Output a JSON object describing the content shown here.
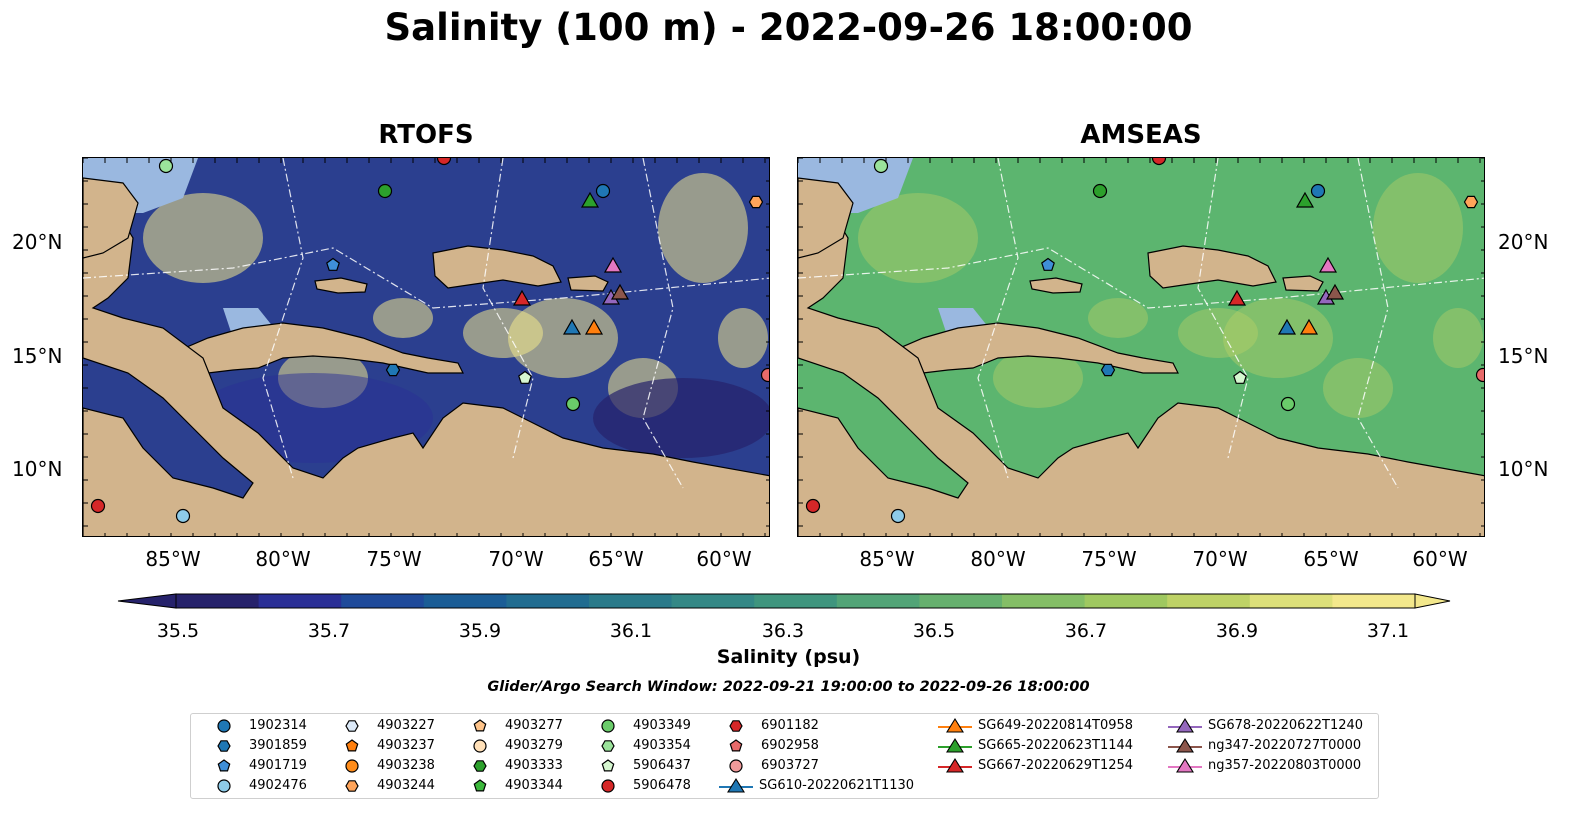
{
  "figure": {
    "title": "Salinity (100 m) - 2022-09-26 18:00:00",
    "panels": [
      {
        "title": "RTOFS",
        "ocean_color": "#2b3f8f"
      },
      {
        "title": "AMSEAS",
        "ocean_color": "#5cb56f"
      }
    ],
    "lat_labels": [
      "20°N",
      "15°N",
      "10°N"
    ],
    "lon_labels": [
      "85°W",
      "80°W",
      "75°W",
      "70°W",
      "65°W",
      "60°W"
    ],
    "colorbar": {
      "label": "Salinity (psu)",
      "ticks": [
        "35.5",
        "35.7",
        "35.9",
        "36.1",
        "36.3",
        "36.5",
        "36.7",
        "36.9",
        "37.1"
      ],
      "colors": [
        "#26226b",
        "#2a2f96",
        "#1f4a9a",
        "#1b5d96",
        "#216c90",
        "#2a7a8a",
        "#348886",
        "#3f957e",
        "#52a477",
        "#66b06e",
        "#84be66",
        "#9fc860",
        "#bed266",
        "#dde07a",
        "#f3e88c"
      ]
    },
    "search_window": "Glider/Argo Search Window: 2022-09-21 19:00:00 to 2022-09-26 18:00:00",
    "colors": {
      "land": "#d2b48c",
      "shelf": "#9ab8e0"
    }
  },
  "legend": [
    {
      "label": "1902314",
      "marker": "circle",
      "color": "#1f77b4"
    },
    {
      "label": "3901859",
      "marker": "hexagon",
      "color": "#1f77b4"
    },
    {
      "label": "4901719",
      "marker": "pentagon",
      "color": "#3f8fd8"
    },
    {
      "label": "4902476",
      "marker": "circle",
      "color": "#8ecbe8"
    },
    {
      "label": "4903227",
      "marker": "hexagon",
      "color": "#dbe9f8"
    },
    {
      "label": "4903237",
      "marker": "pentagon",
      "color": "#ff7f0e"
    },
    {
      "label": "4903238",
      "marker": "circle",
      "color": "#ff8c1a"
    },
    {
      "label": "4903244",
      "marker": "hexagon",
      "color": "#ffa45a"
    },
    {
      "label": "4903277",
      "marker": "pentagon",
      "color": "#ffc48a"
    },
    {
      "label": "4903279",
      "marker": "circle",
      "color": "#ffe0b8"
    },
    {
      "label": "4903333",
      "marker": "hexagon",
      "color": "#2ca02c"
    },
    {
      "label": "4903344",
      "marker": "pentagon",
      "color": "#3cb83c"
    },
    {
      "label": "4903349",
      "marker": "circle",
      "color": "#6acc6a"
    },
    {
      "label": "4903354",
      "marker": "hexagon",
      "color": "#9be39b"
    },
    {
      "label": "5906437",
      "marker": "pentagon",
      "color": "#d6f7d0"
    },
    {
      "label": "5906478",
      "marker": "circle",
      "color": "#d62728"
    },
    {
      "label": "6901182",
      "marker": "hexagon",
      "color": "#d62728"
    },
    {
      "label": "6902958",
      "marker": "pentagon",
      "color": "#e86a6a"
    },
    {
      "label": "6903727",
      "marker": "circle",
      "color": "#f09a9a"
    },
    {
      "label": "SG610-20220621T1130",
      "marker": "triangle-line",
      "color": "#1f77b4"
    },
    {
      "label": "SG649-20220814T0958",
      "marker": "triangle-line",
      "color": "#ff7f0e"
    },
    {
      "label": "SG665-20220623T1144",
      "marker": "triangle-line",
      "color": "#2ca02c"
    },
    {
      "label": "SG667-20220629T1254",
      "marker": "triangle-line",
      "color": "#d62728"
    },
    {
      "label": "SG678-20220622T1240",
      "marker": "triangle-line",
      "color": "#9467bd"
    },
    {
      "label": "ng347-20220727T0000",
      "marker": "triangle-line",
      "color": "#8c564b"
    },
    {
      "label": "ng357-20220803T0000",
      "marker": "triangle-line",
      "color": "#e377c2"
    }
  ]
}
